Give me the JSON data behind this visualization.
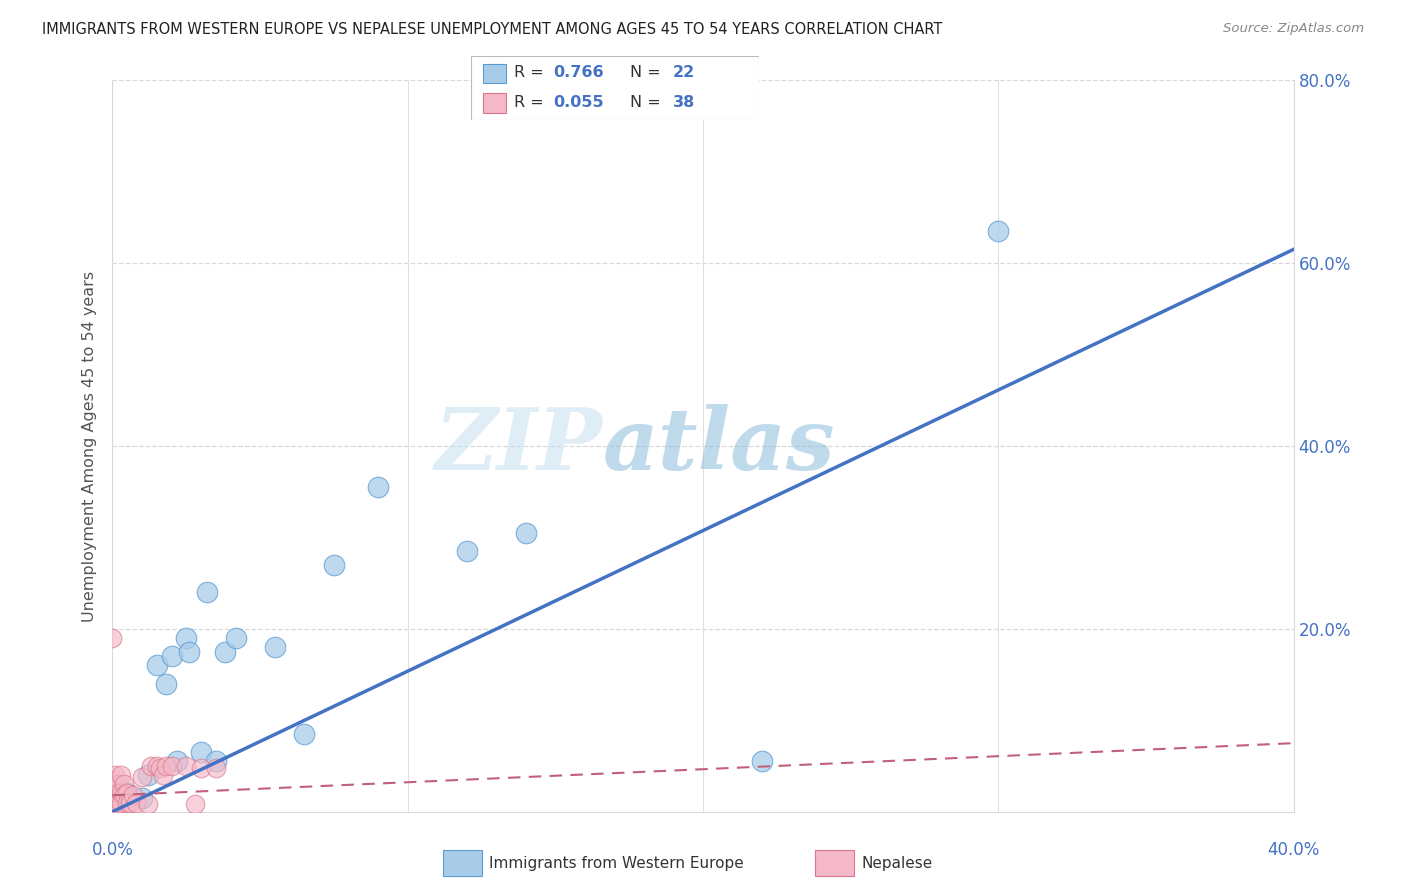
{
  "title": "IMMIGRANTS FROM WESTERN EUROPE VS NEPALESE UNEMPLOYMENT AMONG AGES 45 TO 54 YEARS CORRELATION CHART",
  "source": "Source: ZipAtlas.com",
  "ylabel": "Unemployment Among Ages 45 to 54 years",
  "xlim": [
    0.0,
    0.4
  ],
  "ylim": [
    0.0,
    0.8
  ],
  "ytick_labels": [
    "",
    "20.0%",
    "40.0%",
    "60.0%",
    "80.0%"
  ],
  "ytick_values": [
    0.0,
    0.2,
    0.4,
    0.6,
    0.8
  ],
  "xtick_values": [
    0.0,
    0.1,
    0.2,
    0.3,
    0.4
  ],
  "watermark_zip": "ZIP",
  "watermark_atlas": "atlas",
  "blue_color": "#a8cce8",
  "blue_edge_color": "#5b9bd5",
  "pink_color": "#f4b8c8",
  "pink_edge_color": "#d9768a",
  "blue_line_color": "#4472c4",
  "pink_line_color": "#c0607a",
  "blue_scatter": [
    [
      0.005,
      0.02
    ],
    [
      0.01,
      0.015
    ],
    [
      0.012,
      0.04
    ],
    [
      0.015,
      0.16
    ],
    [
      0.018,
      0.14
    ],
    [
      0.02,
      0.17
    ],
    [
      0.022,
      0.055
    ],
    [
      0.025,
      0.19
    ],
    [
      0.026,
      0.175
    ],
    [
      0.03,
      0.065
    ],
    [
      0.032,
      0.24
    ],
    [
      0.035,
      0.055
    ],
    [
      0.038,
      0.175
    ],
    [
      0.042,
      0.19
    ],
    [
      0.055,
      0.18
    ],
    [
      0.065,
      0.085
    ],
    [
      0.075,
      0.27
    ],
    [
      0.09,
      0.355
    ],
    [
      0.12,
      0.285
    ],
    [
      0.14,
      0.305
    ],
    [
      0.22,
      0.055
    ],
    [
      0.3,
      0.635
    ]
  ],
  "pink_scatter": [
    [
      0.0,
      0.19
    ],
    [
      0.0,
      0.035
    ],
    [
      0.0,
      0.02
    ],
    [
      0.0,
      0.015
    ],
    [
      0.0,
      0.01
    ],
    [
      0.0,
      0.008
    ],
    [
      0.001,
      0.04
    ],
    [
      0.001,
      0.025
    ],
    [
      0.001,
      0.015
    ],
    [
      0.001,
      0.01
    ],
    [
      0.001,
      0.008
    ],
    [
      0.001,
      0.005
    ],
    [
      0.002,
      0.03
    ],
    [
      0.002,
      0.02
    ],
    [
      0.002,
      0.012
    ],
    [
      0.002,
      0.008
    ],
    [
      0.003,
      0.04
    ],
    [
      0.003,
      0.02
    ],
    [
      0.003,
      0.01
    ],
    [
      0.004,
      0.03
    ],
    [
      0.004,
      0.018
    ],
    [
      0.005,
      0.02
    ],
    [
      0.005,
      0.01
    ],
    [
      0.006,
      0.01
    ],
    [
      0.007,
      0.018
    ],
    [
      0.008,
      0.01
    ],
    [
      0.01,
      0.038
    ],
    [
      0.012,
      0.008
    ],
    [
      0.013,
      0.05
    ],
    [
      0.015,
      0.05
    ],
    [
      0.016,
      0.048
    ],
    [
      0.017,
      0.04
    ],
    [
      0.018,
      0.05
    ],
    [
      0.02,
      0.05
    ],
    [
      0.025,
      0.05
    ],
    [
      0.028,
      0.008
    ],
    [
      0.03,
      0.048
    ],
    [
      0.035,
      0.048
    ]
  ],
  "blue_line_x": [
    0.0,
    0.4
  ],
  "blue_line_y": [
    0.0,
    0.615
  ],
  "pink_line_x": [
    0.0,
    0.4
  ],
  "pink_line_y": [
    0.018,
    0.075
  ],
  "grid_color": "#d9d9d9",
  "spine_color": "#d9d9d9",
  "tick_label_color": "#4472c4",
  "ylabel_color": "#555555",
  "title_color": "#222222",
  "source_color": "#888888"
}
